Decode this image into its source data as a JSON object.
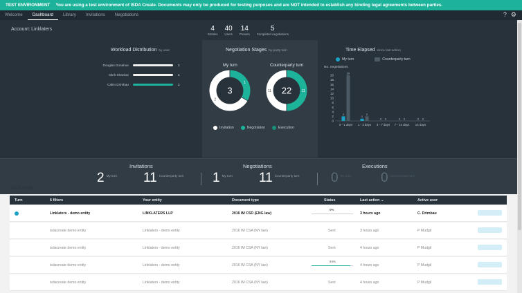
{
  "banner": {
    "tag": "TEST ENVIRONMENT",
    "message": "You are using a test environment of ISDA Create. Documents may only be produced for testing purposes and are NOT intended to establish any binding legal agreements between parties."
  },
  "nav": {
    "tabs": [
      "Welcome",
      "Dashboard",
      "Library",
      "Invitations",
      "Negotiations"
    ],
    "active": "Dashboard",
    "help_icon": "?",
    "settings_icon": "⚙"
  },
  "account": {
    "label": "Account: Linklaters"
  },
  "stats": [
    {
      "value": "4",
      "label": "Entities"
    },
    {
      "value": "40",
      "label": "Users"
    },
    {
      "value": "14",
      "label": "Presets"
    },
    {
      "value": "5",
      "label": "Completed negotiations"
    }
  ],
  "workload": {
    "title": "Workload Distribution",
    "subtitle": "by user",
    "users": [
      {
        "name": "Douglas Donahue",
        "count": "1",
        "highlight": false
      },
      {
        "name": "Minh Shankar",
        "count": "1",
        "highlight": false
      },
      {
        "name": "Calim Drimbau",
        "count": "1",
        "highlight": true
      }
    ]
  },
  "negotiation_stages": {
    "title": "Negotiation Stages",
    "subtitle": "by party turn",
    "my_turn": {
      "label": "My turn",
      "total": "3",
      "segments": [
        {
          "label": "1",
          "value": 1,
          "color": "#1db39a"
        },
        {
          "label": "2",
          "value": 2,
          "color": "#ffffff"
        }
      ]
    },
    "counterparty_turn": {
      "label": "Counterparty turn",
      "total": "22",
      "segments": [
        {
          "label": "11",
          "value": 11,
          "color": "#1db39a"
        },
        {
          "label": "11",
          "value": 11,
          "color": "#ffffff"
        }
      ]
    },
    "legend": [
      {
        "label": "Invitation",
        "color": "#ffffff"
      },
      {
        "label": "Negotiation",
        "color": "#1db39a"
      },
      {
        "label": "Execution",
        "color": "#178f7b"
      }
    ]
  },
  "chart_data": {
    "type": "bar",
    "title": "Time Elapsed",
    "subtitle": "since last action",
    "ylabel": "No. negotiations",
    "categories": [
      "0 - 1 days",
      "1 - 3 days",
      "3 - 7 days",
      "7 - 14 days",
      "14 days"
    ],
    "ylim": [
      0,
      20
    ],
    "yticks": [
      0,
      2,
      4,
      6,
      8,
      10,
      12,
      14,
      16,
      18,
      20
    ],
    "series": [
      {
        "name": "My turn",
        "color": "#1ba3c7",
        "values": [
          2,
          1,
          0,
          0,
          0
        ]
      },
      {
        "name": "Counterparty turn",
        "color": "#4b5a64",
        "values": [
          20,
          2,
          0,
          0,
          0
        ]
      }
    ]
  },
  "kpis": {
    "invitations": {
      "title": "Invitations",
      "my_value": "2",
      "my_label": "My turn",
      "cp_value": "11",
      "cp_label": "Counterparty turn"
    },
    "negotiations": {
      "title": "Negotiations",
      "my_value": "1",
      "my_label": "My turn",
      "cp_value": "11",
      "cp_label": "Counterparty turn"
    },
    "executions": {
      "title": "Executions",
      "my_value": "0",
      "my_label": "My turn",
      "cp_value": "0",
      "cp_label": "Counterparty turn"
    }
  },
  "activity": {
    "title": "All Activity",
    "columns": [
      "Turn",
      "6 filters",
      "Your entity",
      "Document type",
      "Status",
      "Last action ⌄",
      "Active user"
    ],
    "rows": [
      {
        "my_turn": true,
        "bold": true,
        "filter": "Linklaters - demo entity",
        "entity": "LINKLATERS LLP",
        "doc": "2016 IM CSD (ENG law)",
        "status": "",
        "progress": "0%",
        "progress_fraction": 0,
        "last": "3 hours ago",
        "user": "C. Drimbau"
      },
      {
        "my_turn": false,
        "bold": false,
        "filter": "isdacreate demo entity",
        "entity": "Linklaters - demo entity",
        "doc": "2016 IM CSA (NY law)",
        "status": "Sent",
        "progress": "",
        "progress_fraction": null,
        "last": "3 hours ago",
        "user": "P Mudgil"
      },
      {
        "my_turn": false,
        "bold": false,
        "filter": "isdacreate demo entity",
        "entity": "Linklaters - demo entity",
        "doc": "2016 IM CSA (NY law)",
        "status": "Sent",
        "progress": "",
        "progress_fraction": null,
        "last": "4 hours ago",
        "user": "P Mudgil"
      },
      {
        "my_turn": false,
        "bold": false,
        "filter": "isdacreate demo entity",
        "entity": "Linklaters - demo entity",
        "doc": "2016 IM CSA (NY law)",
        "status": "",
        "progress": "94%",
        "progress_fraction": 0.94,
        "last": "4 hours ago",
        "user": "P Mudgil"
      },
      {
        "my_turn": false,
        "bold": false,
        "filter": "isdacreate demo entity",
        "entity": "Linklaters - demo entity",
        "doc": "2016 IM CSA (NY law)",
        "status": "Sent",
        "progress": "",
        "progress_fraction": null,
        "last": "4 hours ago",
        "user": "P Mudgil"
      }
    ],
    "open_label": "Open"
  }
}
